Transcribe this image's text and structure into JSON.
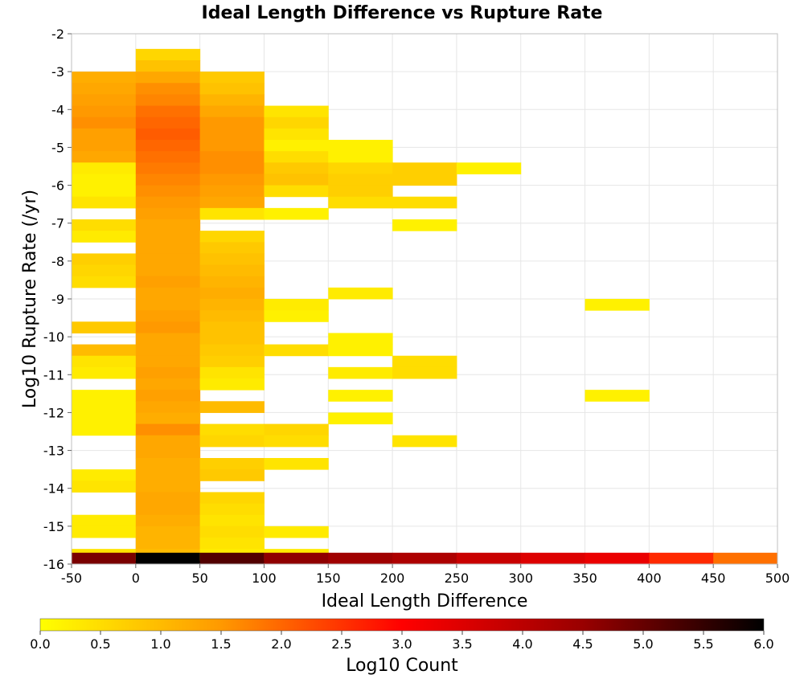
{
  "chart_data": {
    "type": "heatmap",
    "title": "Ideal Length Difference vs Rupture Rate",
    "xlabel": "Ideal Length Difference",
    "ylabel": "Log10 Rupture Rate (/yr)",
    "colorbar_label": "Log10 Count",
    "xlim": [
      -50,
      500
    ],
    "ylim": [
      -16,
      -2
    ],
    "x_ticks": [
      "-50",
      "0",
      "50",
      "100",
      "150",
      "200",
      "250",
      "300",
      "350",
      "400",
      "450",
      "500"
    ],
    "y_ticks": [
      "-2",
      "-3",
      "-4",
      "-5",
      "-6",
      "-7",
      "-8",
      "-9",
      "-10",
      "-11",
      "-12",
      "-13",
      "-14",
      "-15",
      "-16"
    ],
    "colorbar_range": [
      0,
      6
    ],
    "colorbar_ticks": [
      "0.0",
      "0.5",
      "1.0",
      "1.5",
      "2.0",
      "2.5",
      "3.0",
      "3.5",
      "4.0",
      "4.5",
      "5.0",
      "5.5",
      "6.0"
    ],
    "colormap": [
      "#ffff00",
      "#ff9900",
      "#ff0000",
      "#990000",
      "#000000"
    ],
    "grid": true,
    "bin_width": 50,
    "bin_height": 0.3,
    "columns": [
      {
        "x0": -50,
        "cells": [
          [
            -3.3,
            1.2
          ],
          [
            -3.6,
            1.3
          ],
          [
            -3.9,
            1.4
          ],
          [
            -4.2,
            1.5
          ],
          [
            -4.5,
            1.6
          ],
          [
            -4.8,
            1.4
          ],
          [
            -5.1,
            1.4
          ],
          [
            -5.4,
            1.3
          ],
          [
            -5.7,
            0.3
          ],
          [
            -6.0,
            0.2
          ],
          [
            -6.3,
            0.2
          ],
          [
            -6.6,
            0.4
          ],
          [
            -7.2,
            0.5
          ],
          [
            -7.5,
            0.3
          ],
          [
            -8.1,
            0.7
          ],
          [
            -8.4,
            0.6
          ],
          [
            -8.7,
            0.5
          ],
          [
            -9.9,
            0.8
          ],
          [
            -10.5,
            1.0
          ],
          [
            -10.8,
            0.4
          ],
          [
            -11.1,
            0.3
          ],
          [
            -11.7,
            0.2
          ],
          [
            -12.0,
            0.2
          ],
          [
            -12.3,
            0.2
          ],
          [
            -12.6,
            0.2
          ],
          [
            -13.8,
            0.3
          ],
          [
            -14.1,
            0.4
          ],
          [
            -15.0,
            0.3
          ],
          [
            -15.3,
            0.3
          ],
          [
            -15.9,
            0.4
          ],
          [
            -16.0,
            4.8
          ]
        ]
      },
      {
        "x0": 0,
        "cells": [
          [
            -2.7,
            0.6
          ],
          [
            -3.0,
            0.9
          ],
          [
            -3.3,
            1.3
          ],
          [
            -3.6,
            1.6
          ],
          [
            -3.9,
            1.7
          ],
          [
            -4.2,
            1.9
          ],
          [
            -4.5,
            2.0
          ],
          [
            -4.8,
            2.1
          ],
          [
            -5.1,
            2.0
          ],
          [
            -5.4,
            1.9
          ],
          [
            -5.7,
            1.8
          ],
          [
            -6.0,
            1.7
          ],
          [
            -6.3,
            1.6
          ],
          [
            -6.6,
            1.5
          ],
          [
            -6.9,
            1.4
          ],
          [
            -7.2,
            1.3
          ],
          [
            -7.5,
            1.3
          ],
          [
            -7.8,
            1.3
          ],
          [
            -8.1,
            1.3
          ],
          [
            -8.4,
            1.3
          ],
          [
            -8.7,
            1.4
          ],
          [
            -9.0,
            1.3
          ],
          [
            -9.3,
            1.3
          ],
          [
            -9.6,
            1.4
          ],
          [
            -9.9,
            1.5
          ],
          [
            -10.2,
            1.3
          ],
          [
            -10.5,
            1.3
          ],
          [
            -10.8,
            1.3
          ],
          [
            -11.1,
            1.4
          ],
          [
            -11.4,
            1.3
          ],
          [
            -11.7,
            1.4
          ],
          [
            -12.0,
            1.3
          ],
          [
            -12.3,
            1.2
          ],
          [
            -12.6,
            1.6
          ],
          [
            -12.9,
            1.3
          ],
          [
            -13.2,
            1.3
          ],
          [
            -13.5,
            1.2
          ],
          [
            -13.8,
            1.2
          ],
          [
            -14.1,
            1.2
          ],
          [
            -14.4,
            1.3
          ],
          [
            -14.7,
            1.3
          ],
          [
            -15.0,
            1.2
          ],
          [
            -15.3,
            1.1
          ],
          [
            -15.6,
            1.1
          ],
          [
            -15.9,
            1.0
          ],
          [
            -16.0,
            6.0
          ]
        ]
      },
      {
        "x0": 50,
        "cells": [
          [
            -3.3,
            0.8
          ],
          [
            -3.6,
            0.9
          ],
          [
            -3.9,
            1.1
          ],
          [
            -4.2,
            1.3
          ],
          [
            -4.5,
            1.5
          ],
          [
            -4.8,
            1.5
          ],
          [
            -5.1,
            1.5
          ],
          [
            -5.4,
            1.6
          ],
          [
            -5.7,
            1.6
          ],
          [
            -6.0,
            1.5
          ],
          [
            -6.3,
            1.4
          ],
          [
            -6.6,
            1.3
          ],
          [
            -6.9,
            0.4
          ],
          [
            -7.5,
            0.6
          ],
          [
            -7.8,
            0.8
          ],
          [
            -8.1,
            0.9
          ],
          [
            -8.4,
            1.0
          ],
          [
            -8.7,
            1.1
          ],
          [
            -9.0,
            1.2
          ],
          [
            -9.3,
            1.1
          ],
          [
            -9.6,
            1.0
          ],
          [
            -9.9,
            0.9
          ],
          [
            -10.2,
            0.9
          ],
          [
            -10.5,
            0.8
          ],
          [
            -10.8,
            0.7
          ],
          [
            -11.1,
            0.4
          ],
          [
            -11.4,
            0.3
          ],
          [
            -12.0,
            1.0
          ],
          [
            -12.6,
            0.5
          ],
          [
            -12.9,
            0.6
          ],
          [
            -13.5,
            0.7
          ],
          [
            -13.8,
            0.8
          ],
          [
            -14.4,
            0.6
          ],
          [
            -14.7,
            0.5
          ],
          [
            -15.0,
            0.4
          ],
          [
            -15.3,
            0.5
          ],
          [
            -15.6,
            0.4
          ],
          [
            -15.9,
            0.3
          ],
          [
            -16.0,
            5.2
          ]
        ]
      },
      {
        "x0": 100,
        "cells": [
          [
            -4.2,
            0.4
          ],
          [
            -4.5,
            0.6
          ],
          [
            -4.8,
            0.4
          ],
          [
            -5.1,
            0.2
          ],
          [
            -5.4,
            0.5
          ],
          [
            -5.7,
            0.8
          ],
          [
            -6.0,
            0.9
          ],
          [
            -6.3,
            0.5
          ],
          [
            -6.9,
            0.2
          ],
          [
            -9.3,
            0.3
          ],
          [
            -9.6,
            0.2
          ],
          [
            -10.5,
            0.5
          ],
          [
            -12.6,
            0.6
          ],
          [
            -12.9,
            0.5
          ],
          [
            -13.5,
            0.4
          ],
          [
            -15.3,
            0.3
          ],
          [
            -15.9,
            0.3
          ],
          [
            -16.0,
            4.6
          ]
        ]
      },
      {
        "x0": 150,
        "cells": [
          [
            -5.1,
            0.2
          ],
          [
            -5.4,
            0.2
          ],
          [
            -5.7,
            0.6
          ],
          [
            -6.0,
            0.7
          ],
          [
            -6.3,
            0.7
          ],
          [
            -6.6,
            0.5
          ],
          [
            -9.0,
            0.3
          ],
          [
            -10.2,
            0.2
          ],
          [
            -10.5,
            0.2
          ],
          [
            -11.1,
            0.3
          ],
          [
            -11.7,
            0.2
          ],
          [
            -12.3,
            0.2
          ],
          [
            -16.0,
            4.4
          ]
        ]
      },
      {
        "x0": 200,
        "cells": [
          [
            -5.7,
            0.7
          ],
          [
            -6.0,
            0.7
          ],
          [
            -6.6,
            0.5
          ],
          [
            -7.2,
            0.2
          ],
          [
            -10.8,
            0.5
          ],
          [
            -11.1,
            0.5
          ],
          [
            -12.9,
            0.4
          ],
          [
            -16.0,
            4.2
          ]
        ]
      },
      {
        "x0": 250,
        "cells": [
          [
            -5.7,
            0.2
          ],
          [
            -16.0,
            3.8
          ]
        ]
      },
      {
        "x0": 300,
        "cells": [
          [
            -16.0,
            3.5
          ]
        ]
      },
      {
        "x0": 350,
        "cells": [
          [
            -9.3,
            0.2
          ],
          [
            -11.7,
            0.2
          ],
          [
            -16.0,
            3.3
          ]
        ]
      },
      {
        "x0": 400,
        "cells": [
          [
            -16.0,
            2.6
          ]
        ]
      },
      {
        "x0": 450,
        "cells": [
          [
            -16.0,
            1.9
          ]
        ]
      }
    ]
  }
}
